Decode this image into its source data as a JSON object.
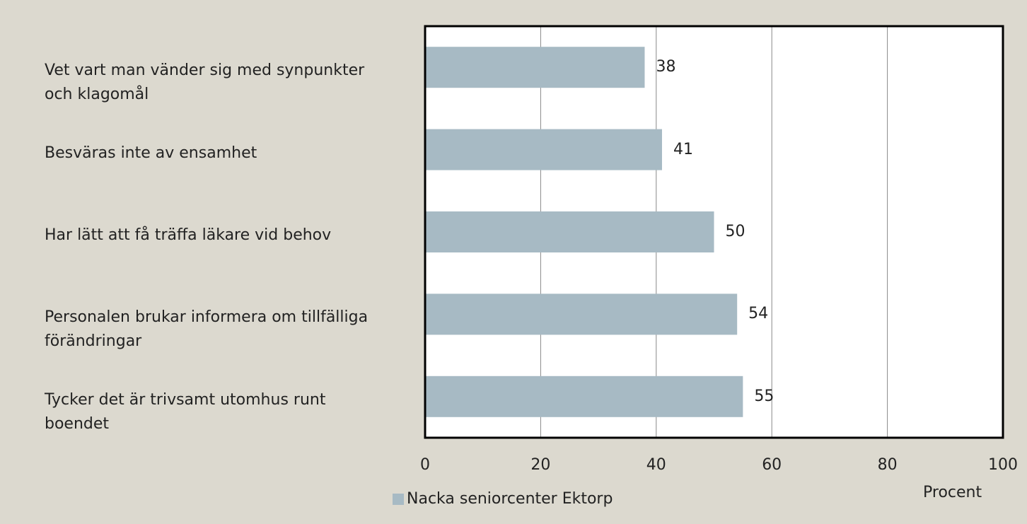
{
  "chart_data": {
    "type": "bar",
    "orientation": "horizontal",
    "categories": [
      "Vet vart man vänder sig med synpunkter och klagomål",
      "Besväras inte av ensamhet",
      "Har lätt att få träffa läkare vid behov",
      "Personalen brukar informera om tillfälliga förändringar",
      "Tycker det är trivsamt utomhus runt boendet"
    ],
    "series": [
      {
        "name": "Nacka seniorcenter Ektorp",
        "color": "#a7bac4",
        "values": [
          38,
          41,
          50,
          54,
          55
        ]
      }
    ],
    "xlabel": "Procent",
    "xlim": [
      0,
      100
    ],
    "xticks": [
      0,
      20,
      40,
      60,
      80,
      100
    ],
    "grid": true,
    "legend": "bottom"
  }
}
